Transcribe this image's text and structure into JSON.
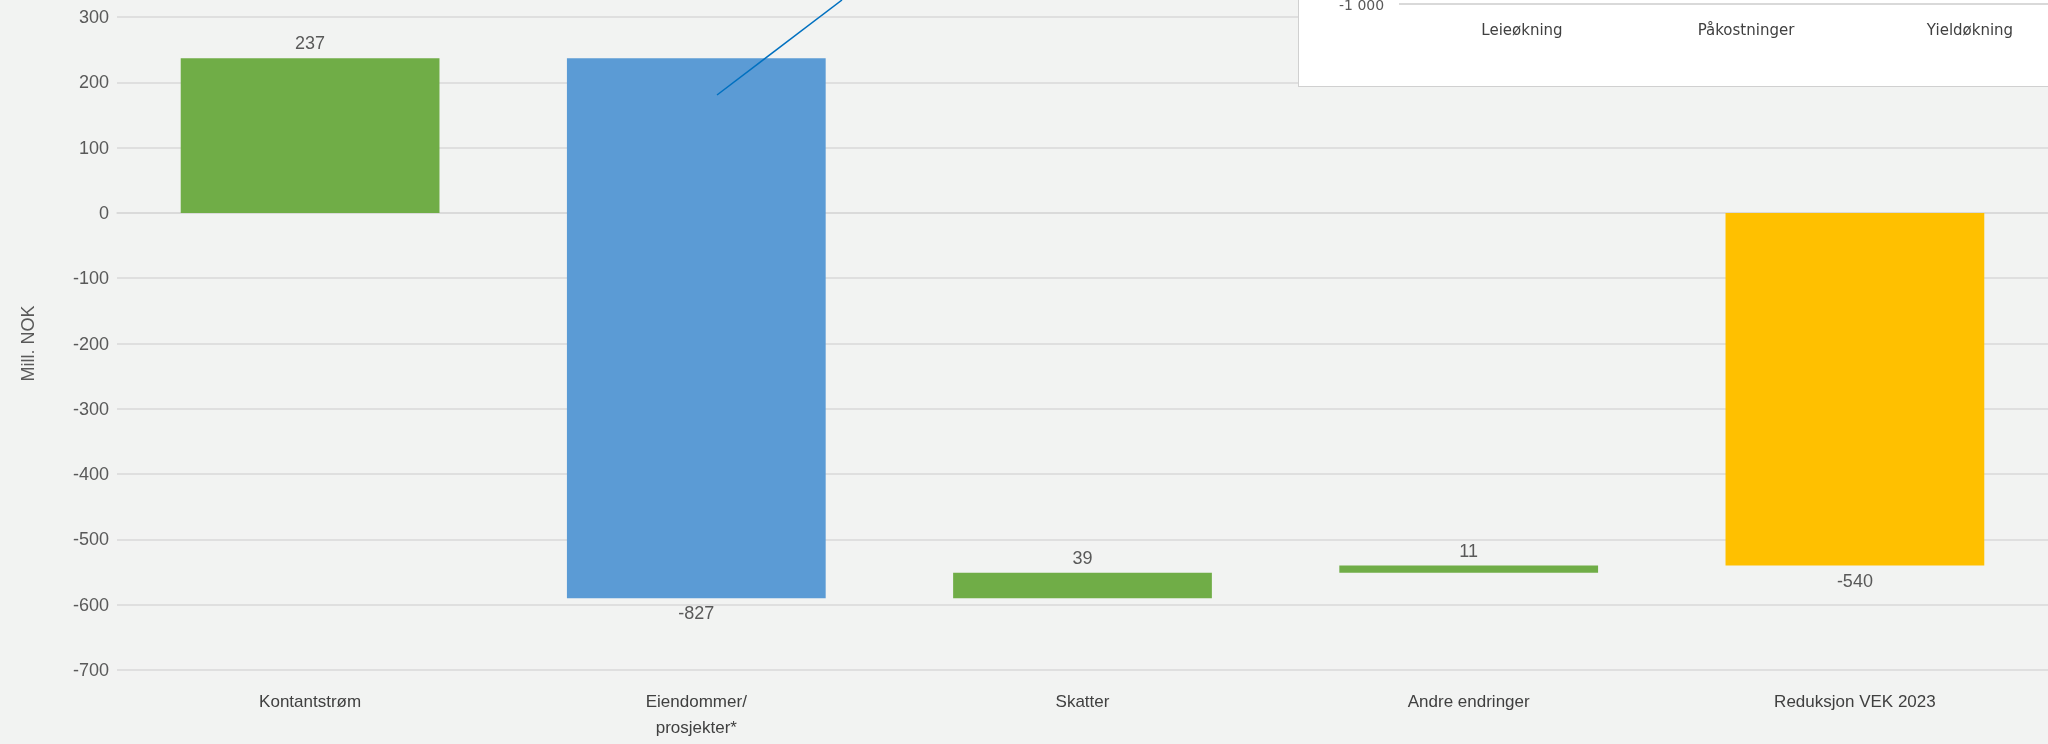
{
  "chart_data": [
    {
      "type": "bar",
      "ylabel": "Mill. NOK",
      "categories": [
        "Kontantstrøm",
        "Eiendommer/\nprosjekter*",
        "Skatter",
        "Andre endringer",
        "Reduksjon VEK 2023"
      ],
      "values": [
        237,
        -827,
        39,
        11,
        -540
      ],
      "base": [
        0,
        237,
        -590,
        -551,
        0
      ],
      "colors": [
        "#70ad47",
        "#5b9bd5",
        "#70ad47",
        "#70ad47",
        "#ffc000"
      ],
      "ylim": [
        -700,
        300
      ],
      "yticks": [
        -700,
        -600,
        -500,
        -400,
        -300,
        -200,
        -100,
        0,
        100,
        200,
        300
      ],
      "grid": "y",
      "data_labels": true
    },
    {
      "type": "other",
      "categories": [
        "Leieøkning",
        "Påkostninger",
        "Yieldøkning"
      ],
      "annotations": [
        "-1 000"
      ]
    }
  ]
}
